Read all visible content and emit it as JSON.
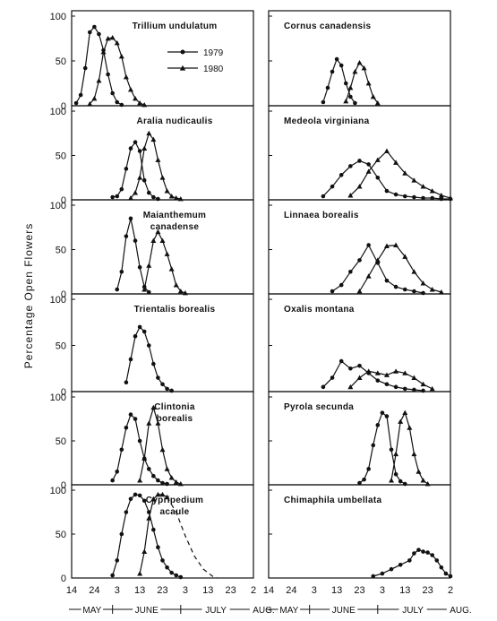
{
  "figure": {
    "ylabel": "Percentage Open Flowers",
    "legend": {
      "placement": "inside first panel",
      "entries": [
        {
          "label": "1979",
          "marker": "circle"
        },
        {
          "label": "1980",
          "marker": "triangle"
        }
      ]
    },
    "x_tick_labels": [
      "14",
      "24",
      "3",
      "13",
      "23",
      "3",
      "13",
      "23",
      "2"
    ],
    "month_labels": [
      "MAY",
      "JUNE",
      "JULY",
      "AUG."
    ],
    "y_tick_labels": [
      "0",
      "50",
      "100"
    ]
  },
  "chart_data": [
    {
      "type": "line",
      "title": "Trillium undulatum",
      "title_lines": [
        "Trillium undulatum"
      ],
      "x_axis": "date (May 14 to Aug. 2)",
      "ylim": [
        0,
        100
      ],
      "series": [
        {
          "name": "1979",
          "marker": "circle",
          "x": [
            "May 16",
            "May 18",
            "May 20",
            "May 22",
            "May 24",
            "May 26",
            "May 28",
            "May 30",
            "Jun 1",
            "Jun 3",
            "Jun 5"
          ],
          "y": [
            3,
            12,
            42,
            82,
            88,
            80,
            62,
            35,
            14,
            4,
            1
          ]
        },
        {
          "name": "1980",
          "marker": "triangle",
          "x": [
            "May 22",
            "May 24",
            "May 26",
            "May 28",
            "May 30",
            "Jun 1",
            "Jun 3",
            "Jun 5",
            "Jun 7",
            "Jun 9",
            "Jun 11",
            "Jun 13",
            "Jun 15"
          ],
          "y": [
            2,
            8,
            28,
            60,
            75,
            76,
            70,
            55,
            32,
            18,
            8,
            3,
            1
          ]
        }
      ]
    },
    {
      "type": "line",
      "title": "Cornus canadensis",
      "title_lines": [
        "Cornus canadensis"
      ],
      "x_axis": "date (May 14 to Aug. 2)",
      "ylim": [
        0,
        100
      ],
      "series": [
        {
          "name": "1979",
          "marker": "circle",
          "x": [
            "Jun 7",
            "Jun 9",
            "Jun 11",
            "Jun 13",
            "Jun 15",
            "Jun 17",
            "Jun 19",
            "Jun 21"
          ],
          "y": [
            4,
            20,
            38,
            52,
            45,
            25,
            10,
            3
          ]
        },
        {
          "name": "1980",
          "marker": "triangle",
          "x": [
            "Jun 17",
            "Jun 19",
            "Jun 21",
            "Jun 23",
            "Jun 25",
            "Jun 27",
            "Jun 29",
            "Jul 1"
          ],
          "y": [
            5,
            20,
            38,
            48,
            42,
            25,
            10,
            3
          ]
        }
      ]
    },
    {
      "type": "line",
      "title": "Aralia nudicaulis",
      "title_lines": [
        "Aralia nudicaulis"
      ],
      "x_axis": "date (May 14 to Aug. 2)",
      "ylim": [
        0,
        100
      ],
      "series": [
        {
          "name": "1979",
          "marker": "circle",
          "x": [
            "Jun 1",
            "Jun 3",
            "Jun 5",
            "Jun 7",
            "Jun 9",
            "Jun 11",
            "Jun 13",
            "Jun 15",
            "Jun 17",
            "Jun 19",
            "Jun 21"
          ],
          "y": [
            3,
            4,
            12,
            35,
            58,
            65,
            55,
            22,
            8,
            3,
            1
          ]
        },
        {
          "name": "1980",
          "marker": "triangle",
          "x": [
            "Jun 9",
            "Jun 11",
            "Jun 13",
            "Jun 15",
            "Jun 17",
            "Jun 19",
            "Jun 21",
            "Jun 23",
            "Jun 25",
            "Jun 27",
            "Jun 29",
            "Jul 1"
          ],
          "y": [
            2,
            8,
            25,
            58,
            75,
            68,
            45,
            25,
            10,
            4,
            2,
            1
          ]
        }
      ]
    },
    {
      "type": "line",
      "title": "Medeola virginiana",
      "title_lines": [
        "Medeola virginiana"
      ],
      "x_axis": "date (May 14 to Aug. 2)",
      "ylim": [
        0,
        100
      ],
      "series": [
        {
          "name": "1979",
          "marker": "circle",
          "x": [
            "Jun 7",
            "Jun 11",
            "Jun 15",
            "Jun 19",
            "Jun 23",
            "Jun 27",
            "Jul 1",
            "Jul 5",
            "Jul 9",
            "Jul 13",
            "Jul 17",
            "Jul 21",
            "Jul 25",
            "Jul 29",
            "Aug 2"
          ],
          "y": [
            4,
            15,
            28,
            38,
            44,
            40,
            25,
            10,
            6,
            4,
            3,
            2,
            2,
            1,
            1
          ]
        },
        {
          "name": "1980",
          "marker": "triangle",
          "x": [
            "Jun 19",
            "Jun 23",
            "Jun 27",
            "Jul 1",
            "Jul 5",
            "Jul 9",
            "Jul 13",
            "Jul 17",
            "Jul 21",
            "Jul 25",
            "Jul 29",
            "Aug 2"
          ],
          "y": [
            5,
            15,
            32,
            45,
            55,
            42,
            30,
            22,
            15,
            10,
            5,
            2
          ]
        }
      ]
    },
    {
      "type": "line",
      "title": "Maianthemum canadense",
      "title_lines": [
        "Maianthemum",
        "canadense"
      ],
      "x_axis": "date (May 14 to Aug. 2)",
      "ylim": [
        0,
        100
      ],
      "series": [
        {
          "name": "1979",
          "marker": "circle",
          "x": [
            "Jun 3",
            "Jun 5",
            "Jun 7",
            "Jun 9",
            "Jun 11",
            "Jun 13",
            "Jun 15",
            "Jun 17"
          ],
          "y": [
            5,
            25,
            65,
            85,
            60,
            30,
            8,
            2
          ]
        },
        {
          "name": "1980",
          "marker": "triangle",
          "x": [
            "Jun 15",
            "Jun 17",
            "Jun 19",
            "Jun 21",
            "Jun 23",
            "Jun 25",
            "Jun 27",
            "Jun 29",
            "Jul 1",
            "Jul 3"
          ],
          "y": [
            5,
            32,
            60,
            70,
            60,
            45,
            28,
            10,
            3,
            1
          ]
        }
      ]
    },
    {
      "type": "line",
      "title": "Linnaea borealis",
      "title_lines": [
        "Linnaea borealis"
      ],
      "x_axis": "date (May 14 to Aug. 2)",
      "ylim": [
        0,
        100
      ],
      "series": [
        {
          "name": "1979",
          "marker": "circle",
          "x": [
            "Jun 11",
            "Jun 15",
            "Jun 19",
            "Jun 23",
            "Jun 27",
            "Jul 1",
            "Jul 5",
            "Jul 9",
            "Jul 13",
            "Jul 17",
            "Jul 21"
          ],
          "y": [
            3,
            10,
            25,
            38,
            55,
            35,
            15,
            8,
            5,
            3,
            1
          ]
        },
        {
          "name": "1980",
          "marker": "triangle",
          "x": [
            "Jun 23",
            "Jun 27",
            "Jul 1",
            "Jul 5",
            "Jul 9",
            "Jul 13",
            "Jul 17",
            "Jul 21",
            "Jul 25",
            "Jul 29"
          ],
          "y": [
            3,
            20,
            38,
            54,
            55,
            42,
            25,
            12,
            5,
            2
          ]
        }
      ]
    },
    {
      "type": "line",
      "title": "Trientalis borealis",
      "title_lines": [
        "Trientalis borealis"
      ],
      "x_axis": "date (May 14 to Aug. 2)",
      "ylim": [
        0,
        100
      ],
      "series": [
        {
          "name": "1979",
          "marker": "circle",
          "x": [
            "Jun 7",
            "Jun 9",
            "Jun 11",
            "Jun 13",
            "Jun 15",
            "Jun 17",
            "Jun 19",
            "Jun 21",
            "Jun 23",
            "Jun 25",
            "Jun 27"
          ],
          "y": [
            10,
            35,
            60,
            70,
            65,
            50,
            30,
            15,
            8,
            3,
            1
          ]
        }
      ]
    },
    {
      "type": "line",
      "title": "Oxalis montana",
      "title_lines": [
        "Oxalis montana"
      ],
      "x_axis": "date (May 14 to Aug. 2)",
      "ylim": [
        0,
        100
      ],
      "series": [
        {
          "name": "1979",
          "marker": "circle",
          "x": [
            "Jun 7",
            "Jun 11",
            "Jun 15",
            "Jun 19",
            "Jun 23",
            "Jun 27",
            "Jul 1",
            "Jul 5",
            "Jul 9",
            "Jul 13",
            "Jul 17",
            "Jul 21"
          ],
          "y": [
            5,
            15,
            33,
            25,
            28,
            20,
            12,
            8,
            5,
            3,
            2,
            1
          ]
        },
        {
          "name": "1980",
          "marker": "triangle",
          "x": [
            "Jun 19",
            "Jun 23",
            "Jun 27",
            "Jul 1",
            "Jul 5",
            "Jul 9",
            "Jul 13",
            "Jul 17",
            "Jul 21",
            "Jul 25"
          ],
          "y": [
            5,
            15,
            22,
            20,
            18,
            22,
            20,
            15,
            8,
            3
          ]
        }
      ]
    },
    {
      "type": "line",
      "title": "Clintonia borealis",
      "title_lines": [
        "Clintonia",
        "borealis"
      ],
      "x_axis": "date (May 14 to Aug. 2)",
      "ylim": [
        0,
        100
      ],
      "series": [
        {
          "name": "1979",
          "marker": "circle",
          "x": [
            "Jun 1",
            "Jun 3",
            "Jun 5",
            "Jun 7",
            "Jun 9",
            "Jun 11",
            "Jun 13",
            "Jun 15",
            "Jun 17",
            "Jun 19",
            "Jun 21",
            "Jun 23",
            "Jun 25"
          ],
          "y": [
            5,
            15,
            40,
            65,
            80,
            75,
            50,
            30,
            18,
            10,
            5,
            2,
            1
          ]
        },
        {
          "name": "1980",
          "marker": "triangle",
          "x": [
            "Jun 13",
            "Jun 15",
            "Jun 17",
            "Jun 19",
            "Jun 21",
            "Jun 23",
            "Jun 25",
            "Jun 27",
            "Jun 29",
            "Jul 1"
          ],
          "y": [
            5,
            30,
            70,
            88,
            70,
            40,
            18,
            8,
            3,
            1
          ]
        }
      ]
    },
    {
      "type": "line",
      "title": "Pyrola secunda",
      "title_lines": [
        "Pyrola secunda"
      ],
      "x_axis": "date (May 14 to Aug. 2)",
      "ylim": [
        0,
        100
      ],
      "series": [
        {
          "name": "1979",
          "marker": "circle",
          "x": [
            "Jun 23",
            "Jun 25",
            "Jun 27",
            "Jun 29",
            "Jul 1",
            "Jul 3",
            "Jul 5",
            "Jul 7",
            "Jul 9",
            "Jul 11",
            "Jul 13"
          ],
          "y": [
            2,
            6,
            18,
            45,
            68,
            82,
            78,
            40,
            12,
            4,
            1
          ]
        },
        {
          "name": "1980",
          "marker": "triangle",
          "x": [
            "Jul 7",
            "Jul 9",
            "Jul 11",
            "Jul 13",
            "Jul 15",
            "Jul 17",
            "Jul 19",
            "Jul 21",
            "Jul 23"
          ],
          "y": [
            5,
            35,
            72,
            82,
            65,
            35,
            15,
            5,
            1
          ]
        }
      ]
    },
    {
      "type": "line",
      "title": "Cypripedium acaule",
      "title_lines": [
        "Cypripedium",
        "acaule"
      ],
      "x_axis": "date (May 14 to Aug. 2)",
      "ylim": [
        0,
        100
      ],
      "series": [
        {
          "name": "1979",
          "marker": "circle",
          "x": [
            "Jun 1",
            "Jun 3",
            "Jun 5",
            "Jun 7",
            "Jun 9",
            "Jun 11",
            "Jun 13",
            "Jun 15",
            "Jun 17",
            "Jun 19",
            "Jun 21",
            "Jun 23",
            "Jun 25",
            "Jun 27",
            "Jun 29",
            "Jul 1"
          ],
          "y": [
            3,
            20,
            50,
            75,
            90,
            95,
            94,
            88,
            75,
            55,
            35,
            20,
            12,
            6,
            3,
            1
          ]
        },
        {
          "name": "1980",
          "marker": "triangle",
          "x": [
            "Jun 13",
            "Jun 15",
            "Jun 17",
            "Jun 19",
            "Jun 21",
            "Jun 23",
            "Jun 25"
          ],
          "y": [
            5,
            30,
            68,
            90,
            95,
            95,
            92
          ]
        },
        {
          "name": "1980 (dashed)",
          "marker": "none",
          "dashed": true,
          "x": [
            "Jun 25",
            "Jun 29",
            "Jul 3",
            "Jul 7",
            "Jul 11",
            "Jul 15",
            "Jul 17"
          ],
          "y": [
            92,
            75,
            48,
            25,
            10,
            2,
            0
          ]
        }
      ]
    },
    {
      "type": "line",
      "title": "Chimaphila umbellata",
      "title_lines": [
        "Chimaphila umbellata"
      ],
      "x_axis": "date (May 14 to Aug. 2)",
      "ylim": [
        0,
        100
      ],
      "series": [
        {
          "name": "1979",
          "marker": "circle",
          "x": [
            "Jun 29",
            "Jul 3",
            "Jul 7",
            "Jul 11",
            "Jul 15",
            "Jul 17",
            "Jul 19",
            "Jul 21",
            "Jul 23",
            "Jul 25",
            "Jul 27",
            "Jul 29",
            "Jul 31",
            "Aug 2"
          ],
          "y": [
            2,
            5,
            10,
            15,
            20,
            28,
            32,
            30,
            29,
            26,
            20,
            12,
            5,
            2
          ]
        }
      ]
    }
  ]
}
